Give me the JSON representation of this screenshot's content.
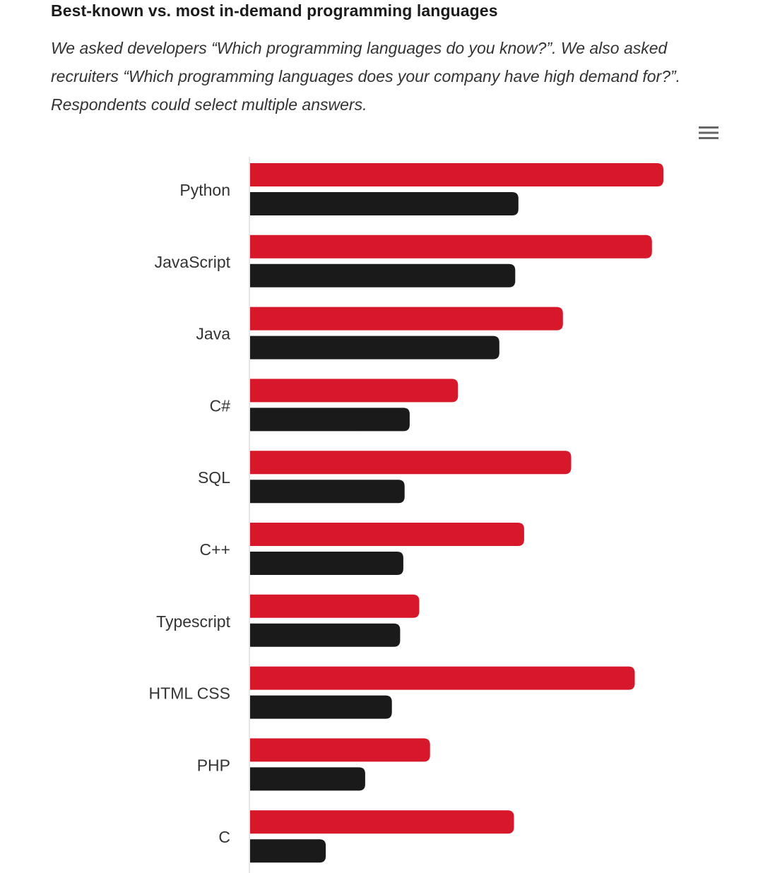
{
  "header": {
    "title": "Best-known vs. most in-demand programming languages",
    "subtitle": "We asked developers “Which programming languages do you know?”. We also asked recruiters “Which programming languages does your company have high demand for?”. Respondents could select multiple answers."
  },
  "icons": {
    "menu": "hamburger-menu-icon"
  },
  "colors": {
    "developers": "#d7182a",
    "recruiters": "#1a1a1a",
    "axis": "#cccccc"
  },
  "chart_data": {
    "type": "bar",
    "orientation": "horizontal",
    "categories": [
      "Python",
      "JavaScript",
      "Java",
      "C#",
      "SQL",
      "C++",
      "Typescript",
      "HTML CSS",
      "PHP",
      "C"
    ],
    "series": [
      {
        "values": [
          65.0,
          63.2,
          49.2,
          32.7,
          50.5,
          43.1,
          26.6,
          60.5,
          28.3,
          41.5
        ],
        "color": "#d7182a"
      },
      {
        "values": [
          42.2,
          41.7,
          39.2,
          25.1,
          24.3,
          24.1,
          23.6,
          22.3,
          18.1,
          11.9
        ],
        "color": "#1a1a1a"
      }
    ],
    "xlim": [
      0,
      80
    ],
    "grid": false,
    "legend": "none"
  }
}
